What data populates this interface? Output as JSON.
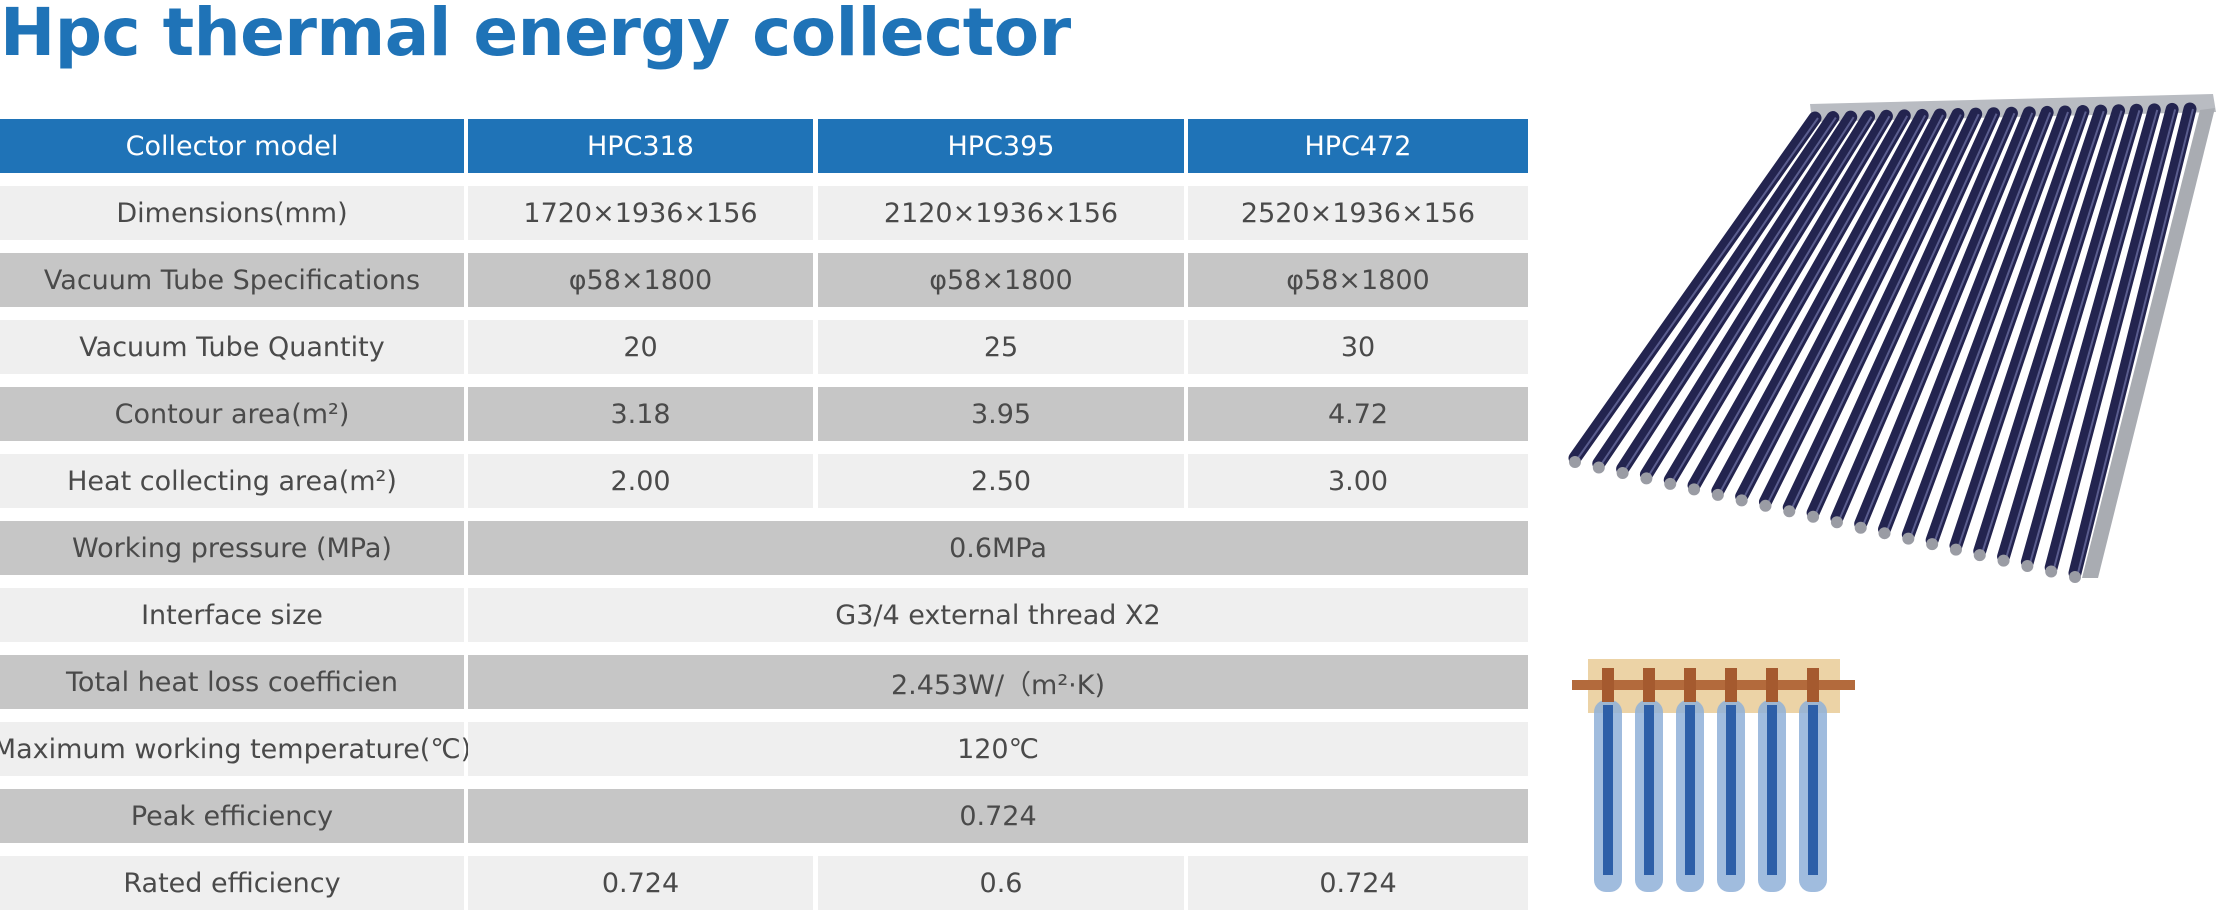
{
  "title": "Hpc thermal energy collector",
  "table": {
    "header": [
      "Collector model",
      "HPC318",
      "HPC395",
      "HPC472"
    ],
    "rows": [
      [
        "Dimensions(mm)",
        "1720×1936×156",
        "2120×1936×156",
        "2520×1936×156"
      ],
      [
        "Vacuum Tube Specifications",
        "φ58×1800",
        "φ58×1800",
        "φ58×1800"
      ],
      [
        "Vacuum Tube Quantity",
        "20",
        "25",
        "30"
      ],
      [
        "Contour area(m²)",
        "3.18",
        "3.95",
        "4.72"
      ],
      [
        "Heat collecting area(m²)",
        "2.00",
        "2.50",
        "3.00"
      ],
      [
        "Working pressure (MPa)",
        "0.6MPa"
      ],
      [
        "Interface size",
        "G3/4 external thread X2"
      ],
      [
        "Total heat loss coefficien",
        "2.453W/（m²·K)"
      ],
      [
        "Maximum working temperature(℃)",
        "120℃"
      ],
      [
        "Peak efficiency",
        "0.724"
      ],
      [
        "Rated efficiency",
        "0.724",
        "0.6",
        "0.724"
      ]
    ]
  }
}
